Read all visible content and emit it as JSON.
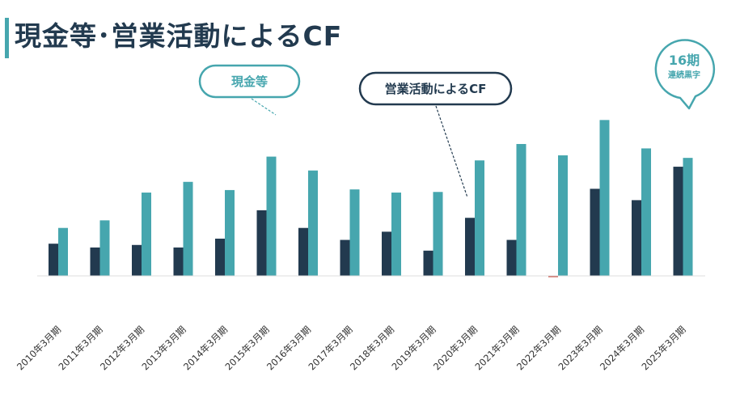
{
  "page": {
    "title": "現金等･営業活動によるCF"
  },
  "colors": {
    "cash": "#46a6ae",
    "operating_cf": "#223a4f",
    "negative": "#c0392b",
    "title_bar": "#46a6ae",
    "title_text": "#223a4f"
  },
  "chart_data": {
    "type": "bar",
    "title": "",
    "xlabel": "",
    "ylabel": "",
    "categories": [
      "2010年3月期",
      "2011年3月期",
      "2012年3月期",
      "2013年3月期",
      "2014年3月期",
      "2015年3月期",
      "2016年3月期",
      "2017年3月期",
      "2018年3月期",
      "2019年3月期",
      "2020年3月期",
      "2021年3月期",
      "2022年3月期",
      "2023年3月期",
      "2024年3月期",
      "2025年3月期"
    ],
    "series": [
      {
        "key": "operating_cf",
        "name": "営業活動によるCF",
        "values": [
          51,
          45,
          49,
          45,
          59,
          104,
          76,
          57,
          70,
          40,
          92,
          57,
          -1,
          138,
          120,
          173
        ]
      },
      {
        "key": "cash",
        "name": "現金等",
        "values": [
          76,
          88,
          132,
          149,
          136,
          189,
          167,
          137,
          132,
          133,
          183,
          209,
          191,
          247,
          202,
          187
        ]
      }
    ],
    "y_axis_visible": false,
    "grid": false,
    "ylim": [
      0,
      260
    ],
    "annotations": {
      "cash_label": "現金等",
      "cf_label": "営業活動によるCF",
      "badge_big": "16期",
      "badge_small": "連続黒字"
    }
  }
}
